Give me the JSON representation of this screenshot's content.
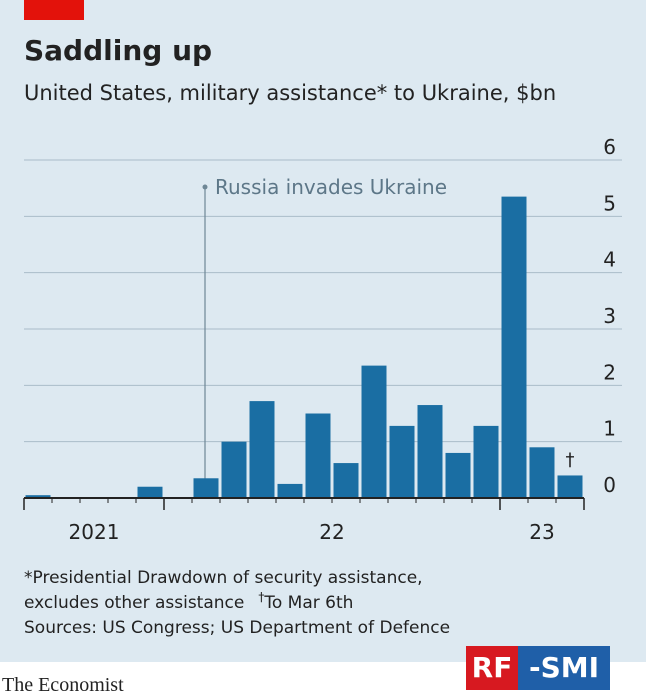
{
  "chart_data": {
    "type": "bar",
    "title": "Saddling up",
    "subtitle": "United States, military assistance* to Ukraine, $bn",
    "categories": [
      null,
      null,
      null,
      null,
      null,
      null,
      null,
      null,
      null,
      null,
      null,
      null,
      null,
      null,
      null,
      null,
      null,
      null,
      null,
      null
    ],
    "values": [
      0.05,
      0,
      0,
      0,
      0.2,
      0,
      0.35,
      1.0,
      1.72,
      0.25,
      1.5,
      0.62,
      2.35,
      1.28,
      1.65,
      0.8,
      1.28,
      5.35,
      0.9,
      0.4
    ],
    "color": "#1a6ea3",
    "year_groups": [
      {
        "label": "2021",
        "months": 5
      },
      {
        "label": "22",
        "months": 12
      },
      {
        "label": "23",
        "months": 3
      }
    ],
    "ylim": [
      0,
      6
    ],
    "yticks": [
      0,
      1,
      2,
      3,
      4,
      5,
      6
    ],
    "grid": true,
    "annotation": "Russia invades Ukraine",
    "last_bar_mark": "†",
    "footnote": [
      "*Presidential Drawdown of security assistance,",
      "excludes other assistance",
      "†",
      "To Mar 6th"
    ],
    "source": "Sources: US Congress; US Department of Defence",
    "brand": "The Economist",
    "watermark": [
      "RF",
      "-SMI"
    ]
  }
}
